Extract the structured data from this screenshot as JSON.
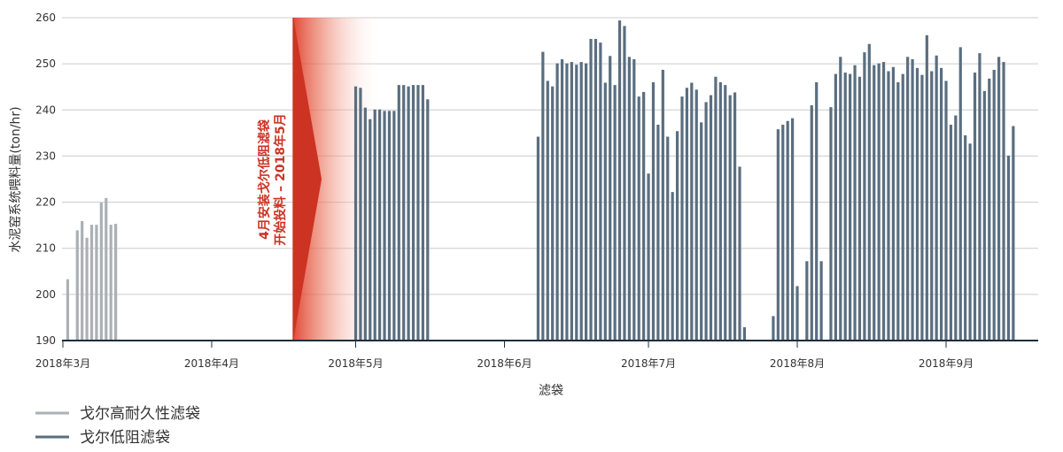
{
  "chart_data": {
    "type": "bar",
    "xlabel": "滤袋",
    "ylabel": "水泥窑系统喂料量(ton/hr)",
    "ylim": [
      190,
      260
    ],
    "yticks": [
      "190",
      "200",
      "210",
      "220",
      "230",
      "240",
      "250",
      "260"
    ],
    "x_ticks": [
      {
        "date": "2018-03-01",
        "label": "2018年3月"
      },
      {
        "date": "2018-04-01",
        "label": "2018年4月"
      },
      {
        "date": "2018-05-01",
        "label": "2018年5月"
      },
      {
        "date": "2018-06-01",
        "label": "2018年6月"
      },
      {
        "date": "2018-07-01",
        "label": "2018年7月"
      },
      {
        "date": "2018-08-01",
        "label": "2018年8月"
      },
      {
        "date": "2018-09-01",
        "label": "2018年9月"
      }
    ],
    "grid": true,
    "legend_position": "bottom-left",
    "colors": {
      "gray": "#abb0b4",
      "blue": "#5a6e80",
      "red": "#cc3323",
      "grid": "#cccccc",
      "axis": "#1f2e3d"
    },
    "series": [
      {
        "name": "戈尔高耐久性滤袋",
        "color": "#abb0b4",
        "points": [
          [
            "2018-03-02",
            203.3
          ],
          [
            "2018-03-04",
            213.9
          ],
          [
            "2018-03-05",
            215.9
          ],
          [
            "2018-03-06",
            212.3
          ],
          [
            "2018-03-07",
            215.1
          ],
          [
            "2018-03-08",
            215.1
          ],
          [
            "2018-03-09",
            219.9
          ],
          [
            "2018-03-10",
            220.9
          ],
          [
            "2018-03-11",
            215.1
          ],
          [
            "2018-03-12",
            215.3
          ]
        ]
      },
      {
        "name": "戈尔低阻滤袋",
        "color": "#5a6e80",
        "points": [
          [
            "2018-05-01",
            245.1
          ],
          [
            "2018-05-02",
            244.8
          ],
          [
            "2018-05-03",
            240.5
          ],
          [
            "2018-05-04",
            238.0
          ],
          [
            "2018-05-05",
            240.1
          ],
          [
            "2018-05-06",
            240.1
          ],
          [
            "2018-05-07",
            239.8
          ],
          [
            "2018-05-08",
            239.8
          ],
          [
            "2018-05-09",
            239.8
          ],
          [
            "2018-05-10",
            245.4
          ],
          [
            "2018-05-11",
            245.4
          ],
          [
            "2018-05-12",
            245.1
          ],
          [
            "2018-05-13",
            245.4
          ],
          [
            "2018-05-14",
            245.4
          ],
          [
            "2018-05-15",
            245.4
          ],
          [
            "2018-05-16",
            242.3
          ],
          [
            "2018-06-08",
            234.2
          ],
          [
            "2018-06-09",
            252.6
          ],
          [
            "2018-06-10",
            246.3
          ],
          [
            "2018-06-11",
            245.1
          ],
          [
            "2018-06-12",
            250.1
          ],
          [
            "2018-06-13",
            251.0
          ],
          [
            "2018-06-14",
            250.1
          ],
          [
            "2018-06-15",
            250.4
          ],
          [
            "2018-06-16",
            249.8
          ],
          [
            "2018-06-17",
            250.4
          ],
          [
            "2018-06-18",
            250.1
          ],
          [
            "2018-06-19",
            255.4
          ],
          [
            "2018-06-20",
            255.4
          ],
          [
            "2018-06-21",
            254.6
          ],
          [
            "2018-06-22",
            245.9
          ],
          [
            "2018-06-23",
            251.7
          ],
          [
            "2018-06-24",
            245.4
          ],
          [
            "2018-06-25",
            259.4
          ],
          [
            "2018-06-26",
            258.2
          ],
          [
            "2018-06-27",
            251.5
          ],
          [
            "2018-06-28",
            251.0
          ],
          [
            "2018-06-29",
            242.9
          ],
          [
            "2018-06-30",
            243.9
          ],
          [
            "2018-07-01",
            226.2
          ],
          [
            "2018-07-02",
            246.0
          ],
          [
            "2018-07-03",
            236.8
          ],
          [
            "2018-07-04",
            248.7
          ],
          [
            "2018-07-05",
            234.2
          ],
          [
            "2018-07-06",
            222.2
          ],
          [
            "2018-07-07",
            235.4
          ],
          [
            "2018-07-08",
            242.9
          ],
          [
            "2018-07-09",
            244.8
          ],
          [
            "2018-07-10",
            245.9
          ],
          [
            "2018-07-11",
            244.4
          ],
          [
            "2018-07-12",
            237.3
          ],
          [
            "2018-07-13",
            241.7
          ],
          [
            "2018-07-14",
            243.2
          ],
          [
            "2018-07-15",
            247.2
          ],
          [
            "2018-07-16",
            246.0
          ],
          [
            "2018-07-17",
            245.4
          ],
          [
            "2018-07-18",
            243.2
          ],
          [
            "2018-07-19",
            243.8
          ],
          [
            "2018-07-20",
            227.7
          ],
          [
            "2018-07-21",
            192.9
          ],
          [
            "2018-07-27",
            195.3
          ],
          [
            "2018-07-28",
            235.8
          ],
          [
            "2018-07-29",
            236.8
          ],
          [
            "2018-07-30",
            237.6
          ],
          [
            "2018-07-31",
            238.2
          ],
          [
            "2018-08-01",
            201.8
          ],
          [
            "2018-08-03",
            207.2
          ],
          [
            "2018-08-04",
            241.0
          ],
          [
            "2018-08-05",
            246.0
          ],
          [
            "2018-08-06",
            207.2
          ],
          [
            "2018-08-08",
            240.6
          ],
          [
            "2018-08-09",
            247.8
          ],
          [
            "2018-08-10",
            251.5
          ],
          [
            "2018-08-11",
            248.1
          ],
          [
            "2018-08-12",
            247.8
          ],
          [
            "2018-08-13",
            249.7
          ],
          [
            "2018-08-14",
            247.2
          ],
          [
            "2018-08-15",
            252.5
          ],
          [
            "2018-08-16",
            254.3
          ],
          [
            "2018-08-17",
            249.7
          ],
          [
            "2018-08-18",
            250.1
          ],
          [
            "2018-08-19",
            250.4
          ],
          [
            "2018-08-20",
            248.4
          ],
          [
            "2018-08-21",
            249.3
          ],
          [
            "2018-08-22",
            246.0
          ],
          [
            "2018-08-23",
            247.8
          ],
          [
            "2018-08-24",
            251.5
          ],
          [
            "2018-08-25",
            251.0
          ],
          [
            "2018-08-26",
            249.1
          ],
          [
            "2018-08-27",
            247.6
          ],
          [
            "2018-08-28",
            256.2
          ],
          [
            "2018-08-29",
            248.4
          ],
          [
            "2018-08-30",
            251.8
          ],
          [
            "2018-08-31",
            249.1
          ],
          [
            "2018-09-01",
            246.3
          ],
          [
            "2018-09-02",
            236.8
          ],
          [
            "2018-09-03",
            238.8
          ],
          [
            "2018-09-04",
            253.6
          ],
          [
            "2018-09-05",
            234.5
          ],
          [
            "2018-09-06",
            232.7
          ],
          [
            "2018-09-07",
            248.1
          ],
          [
            "2018-09-08",
            252.3
          ],
          [
            "2018-09-09",
            244.1
          ],
          [
            "2018-09-10",
            246.8
          ],
          [
            "2018-09-11",
            248.7
          ],
          [
            "2018-09-12",
            251.5
          ],
          [
            "2018-09-13",
            250.4
          ],
          [
            "2018-09-14",
            230.1
          ],
          [
            "2018-09-15",
            236.5
          ]
        ]
      }
    ],
    "annotation": {
      "lines": [
        "4月安装戈尔低阻滤袋",
        "开始投料 – 2018年5月"
      ],
      "date": "2018-04-18",
      "color": "#cc3323"
    }
  }
}
